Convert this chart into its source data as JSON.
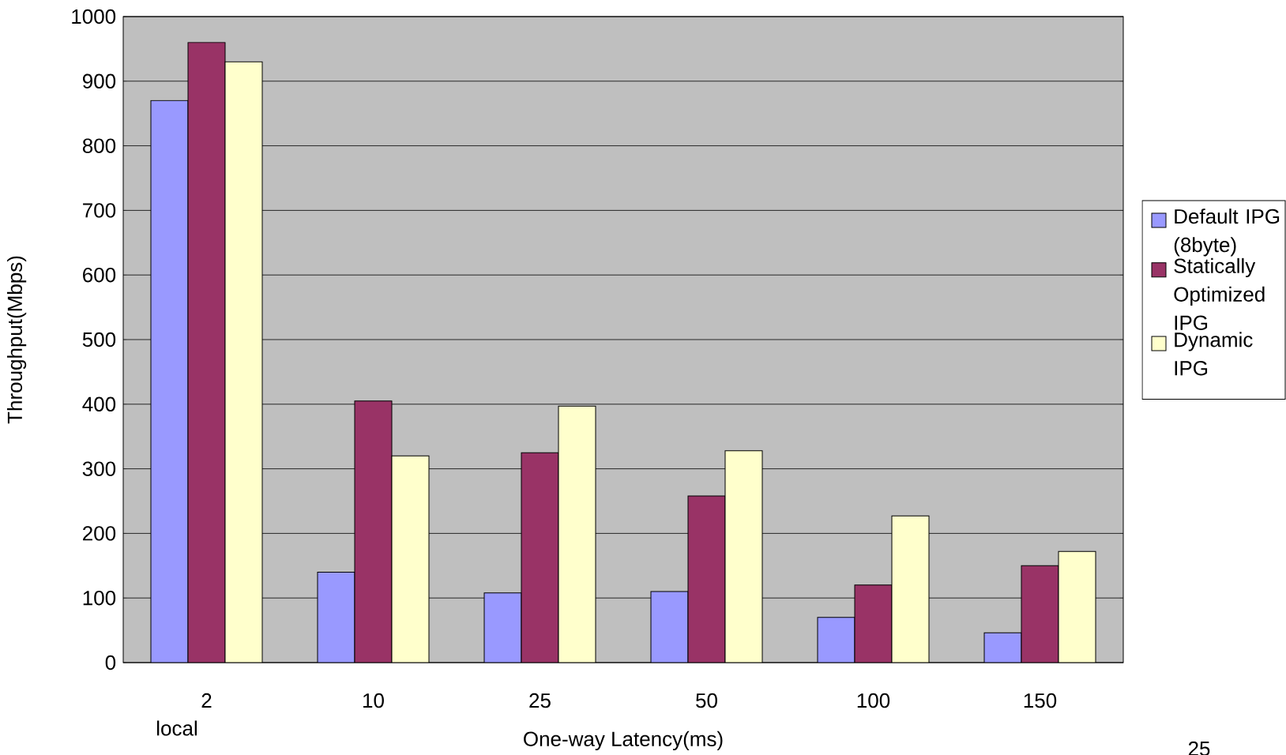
{
  "chart_data": {
    "type": "bar",
    "categories": [
      "2",
      "10",
      "25",
      "50",
      "100",
      "150"
    ],
    "series": [
      {
        "name": "Default IPG (8byte)",
        "color": "#9999ff",
        "values": [
          870,
          140,
          108,
          110,
          70,
          46
        ]
      },
      {
        "name": "Statically Optimized IPG",
        "color": "#993366",
        "values": [
          960,
          405,
          325,
          258,
          120,
          150
        ]
      },
      {
        "name": "Dynamic IPG",
        "color": "#ffffcc",
        "values": [
          930,
          320,
          397,
          328,
          227,
          172
        ]
      }
    ],
    "xlabel": "One-way Latency(ms)",
    "ylabel": "Throughput(Mbps)",
    "ylim": [
      0,
      1000
    ],
    "yticks": [
      0,
      100,
      200,
      300,
      400,
      500,
      600,
      700,
      800,
      900,
      1000
    ],
    "grid": "y",
    "legend": "right",
    "annotations": [
      "local",
      "25"
    ]
  }
}
